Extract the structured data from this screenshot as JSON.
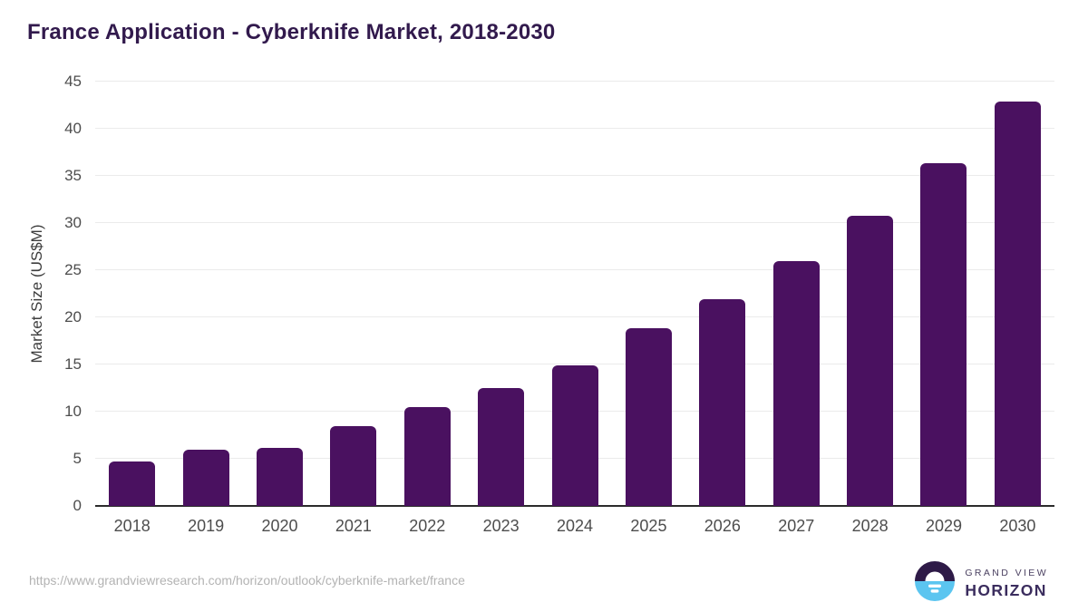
{
  "header": {
    "title": "France Application - Cyberknife Market, 2018-2030"
  },
  "chart_data": {
    "type": "bar",
    "title": "France Application - Cyberknife Market, 2018-2030",
    "categories": [
      "2018",
      "2019",
      "2020",
      "2021",
      "2022",
      "2023",
      "2024",
      "2025",
      "2026",
      "2027",
      "2028",
      "2029",
      "2030"
    ],
    "values": [
      4.7,
      6.0,
      6.2,
      8.5,
      10.5,
      12.5,
      14.9,
      18.8,
      21.9,
      26.0,
      30.8,
      36.3,
      42.9
    ],
    "xlabel": "",
    "ylabel": "Market Size (US$M)",
    "ylim": [
      0,
      45
    ],
    "ytick_step": 5,
    "grid": true,
    "legend": false,
    "bar_color": "#4a1160"
  },
  "colors": {
    "bar": "#4a1160",
    "title": "#321a4d",
    "axis_label": "#4d4d4d",
    "gridline": "#ebebeb",
    "baseline": "#2b2b2b",
    "url_text": "#b3b3b3",
    "logo_dark": "#2e1a47",
    "logo_blue": "#5bc5f0"
  },
  "footer": {
    "source_url": "https://www.grandviewresearch.com/horizon/outlook/cyberknife-market/france",
    "logo": {
      "line1": "GRAND VIEW",
      "line2": "HORIZON"
    }
  }
}
